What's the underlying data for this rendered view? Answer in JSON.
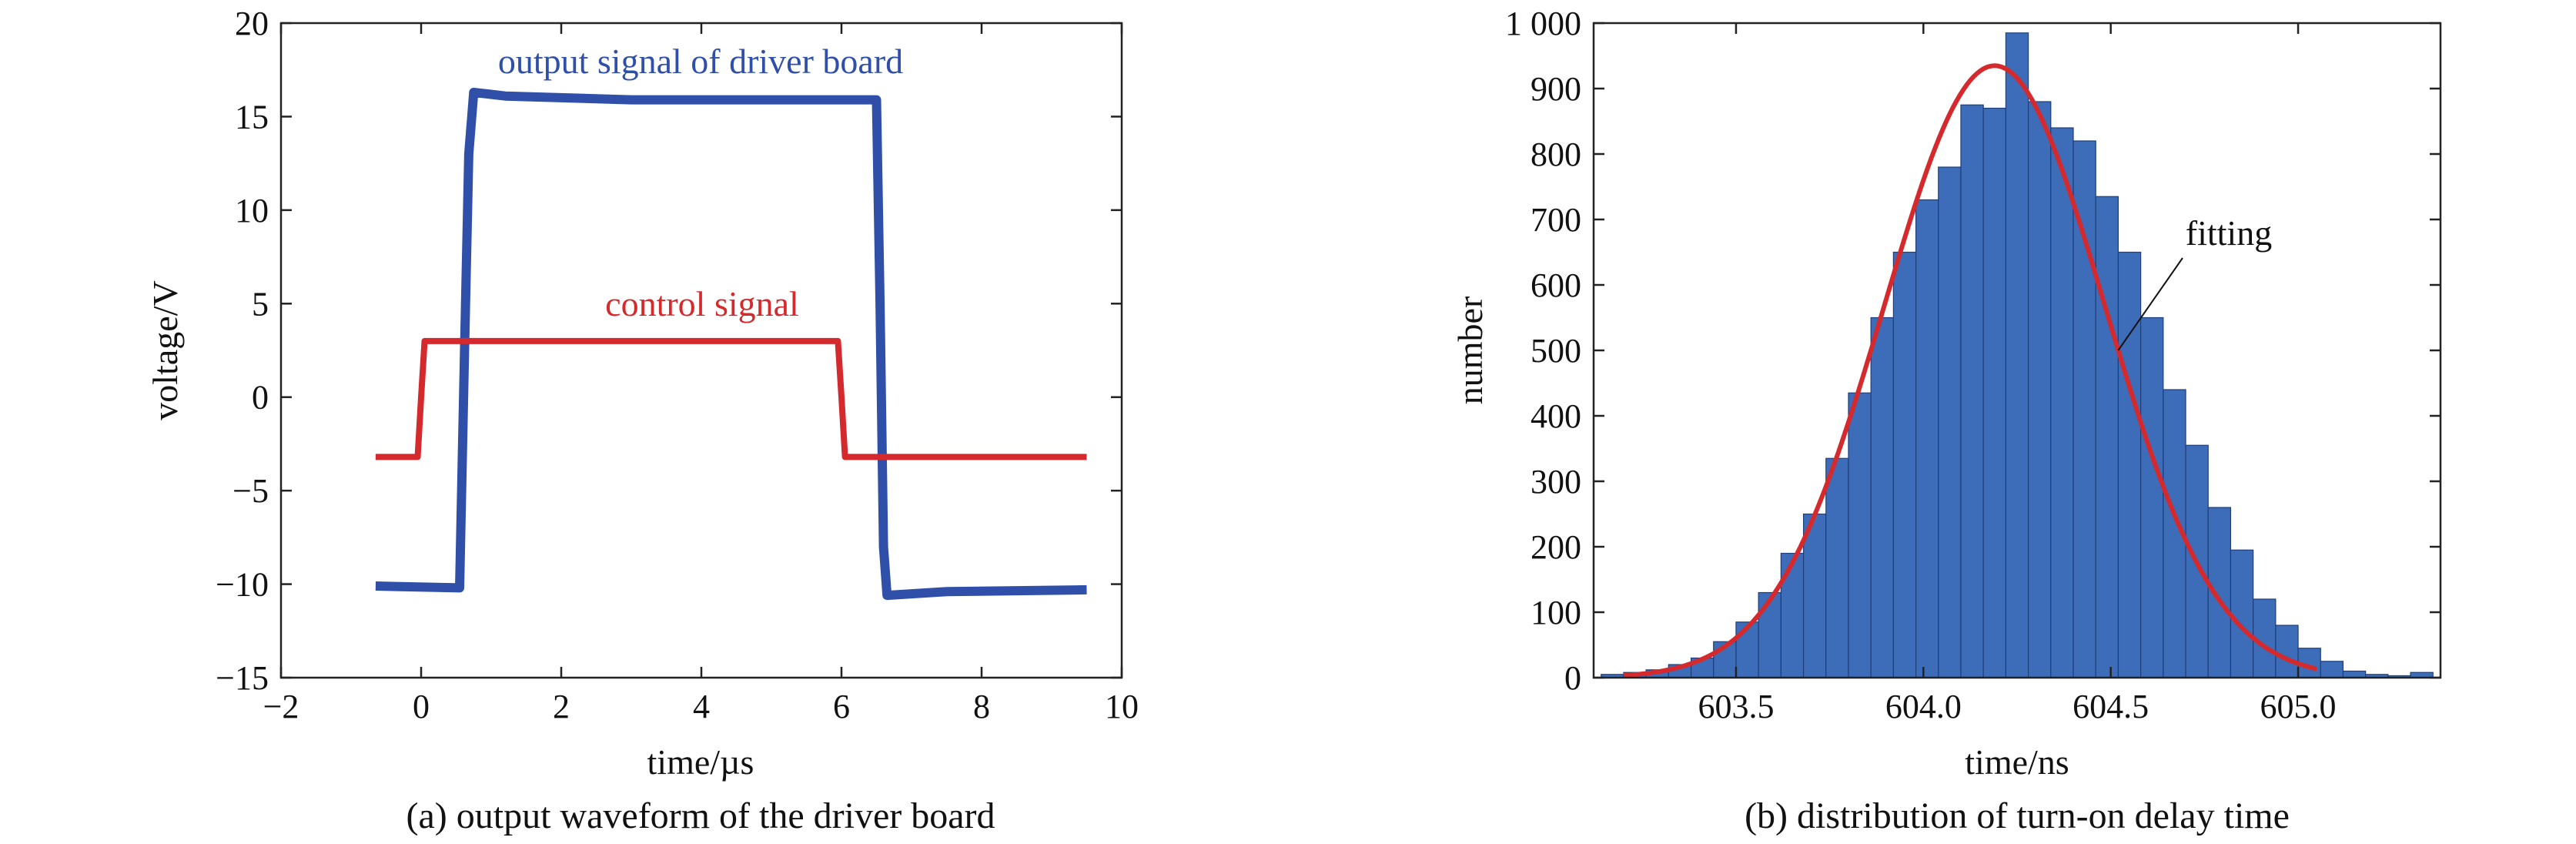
{
  "chart_data": [
    {
      "type": "line",
      "caption": "(a) output waveform of the driver board",
      "xlabel": "time/µs",
      "ylabel": "voltage/V",
      "xlim": [
        -2,
        10
      ],
      "ylim": [
        -15,
        20
      ],
      "xticks": [
        -2,
        0,
        2,
        4,
        6,
        8,
        10
      ],
      "yticks": [
        -15,
        -10,
        -5,
        0,
        5,
        10,
        15,
        20
      ],
      "xtick_labels": [
        "−2",
        "0",
        "2",
        "4",
        "6",
        "8",
        "10"
      ],
      "ytick_labels": [
        "−15",
        "−10",
        "−5",
        "0",
        "5",
        "10",
        "15",
        "20"
      ],
      "grid": false,
      "series": [
        {
          "name": "output signal of driver board",
          "color": "#2f4fa8",
          "x": [
            -0.65,
            0.55,
            0.62,
            0.68,
            0.75,
            1.2,
            3.0,
            5.0,
            6.5,
            6.55,
            6.6,
            6.65,
            7.5,
            9.5
          ],
          "y": [
            -10.1,
            -10.2,
            2.5,
            13.0,
            16.3,
            16.1,
            15.9,
            15.9,
            15.9,
            5.0,
            -8.0,
            -10.6,
            -10.4,
            -10.3
          ]
        },
        {
          "name": "control signal",
          "color": "#d42a2e",
          "x": [
            -0.65,
            -0.05,
            0.0,
            0.05,
            3.0,
            5.95,
            6.0,
            6.05,
            9.5
          ],
          "y": [
            -3.2,
            -3.2,
            0.0,
            3.0,
            3.0,
            3.0,
            0.0,
            -3.2,
            -3.2
          ]
        }
      ]
    },
    {
      "type": "bar",
      "caption": "(b) distribution of turn-on delay time",
      "xlabel": "time/ns",
      "ylabel": "number",
      "xlim": [
        603.12,
        605.38
      ],
      "ylim": [
        0,
        1000
      ],
      "xticks": [
        603.5,
        604.0,
        604.5,
        605.0
      ],
      "yticks": [
        0,
        100,
        200,
        300,
        400,
        500,
        600,
        700,
        800,
        900,
        1000
      ],
      "xtick_labels": [
        "603.5",
        "604.0",
        "604.5",
        "605.0"
      ],
      "ytick_labels": [
        "0",
        "100",
        "200",
        "300",
        "400",
        "500",
        "600",
        "700",
        "800",
        "900",
        "1 000"
      ],
      "grid": false,
      "bin_edges": [
        603.14,
        603.2,
        603.26,
        603.32,
        603.38,
        603.44,
        603.5,
        603.56,
        603.62,
        603.68,
        603.74,
        603.8,
        603.86,
        603.92,
        603.98,
        604.04,
        604.1,
        604.16,
        604.22,
        604.28,
        604.34,
        604.4,
        604.46,
        604.52,
        604.58,
        604.64,
        604.7,
        604.76,
        604.82,
        604.88,
        604.94,
        605.0,
        605.06,
        605.12,
        605.18,
        605.24,
        605.3,
        605.36
      ],
      "values": [
        5,
        8,
        12,
        20,
        30,
        55,
        85,
        130,
        190,
        250,
        335,
        435,
        550,
        650,
        730,
        780,
        875,
        870,
        985,
        880,
        840,
        820,
        735,
        650,
        550,
        440,
        355,
        260,
        195,
        120,
        80,
        45,
        25,
        10,
        5,
        3,
        8
      ],
      "bar_color": "#3d6cb8",
      "fit": {
        "name": "fitting",
        "color": "#d42a2e",
        "mean": 604.19,
        "sigma": 0.295,
        "peak": 935,
        "x_range": [
          603.2,
          605.05
        ]
      },
      "annotations": [
        "fitting"
      ]
    }
  ]
}
